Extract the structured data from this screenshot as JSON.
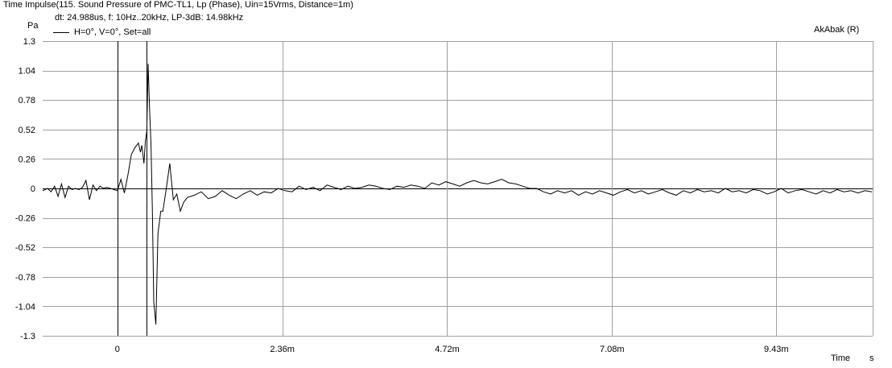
{
  "window": {
    "title": "Time Impulse(115. Sound Pressure of PMC-TL1, Lp (Phase), Uin=15Vrms, Distance=1m)",
    "subtitle": "dt: 24.988us, f: 10Hz..20kHz, LP-3dB: 14.98kHz",
    "watermark": "AkAbak (R)"
  },
  "chart_data": {
    "type": "line",
    "title": "Time Impulse(115. Sound Pressure of PMC-TL1, Lp (Phase), Uin=15Vrms, Distance=1m)",
    "subtitle": "dt: 24.988us, f: 10Hz..20kHz, LP-3dB: 14.98kHz",
    "xlabel": "Time",
    "xunit": "s",
    "ylabel": "Pa",
    "ylim": [
      -1.3,
      1.3
    ],
    "xlim": [
      -0.00107,
      0.01081
    ],
    "grid": true,
    "legend_position": "top-left",
    "y_ticks": [
      {
        "v": 1.3,
        "label": "1.3"
      },
      {
        "v": 1.04,
        "label": "1.04"
      },
      {
        "v": 0.78,
        "label": "0.78"
      },
      {
        "v": 0.52,
        "label": "0.52"
      },
      {
        "v": 0.26,
        "label": "0.26"
      },
      {
        "v": 0,
        "label": "0"
      },
      {
        "v": -0.26,
        "label": "-0.26"
      },
      {
        "v": -0.52,
        "label": "-0.52"
      },
      {
        "v": -0.78,
        "label": "-0.78"
      },
      {
        "v": -1.04,
        "label": "-1.04"
      },
      {
        "v": -1.3,
        "label": "-1.3"
      }
    ],
    "x_ticks": [
      {
        "v": 0,
        "label": "0"
      },
      {
        "v": 0.00236,
        "label": "2.36m"
      },
      {
        "v": 0.00472,
        "label": "4.72m"
      },
      {
        "v": 0.00708,
        "label": "7.08m"
      },
      {
        "v": 0.00943,
        "label": "9.43m"
      }
    ],
    "series": [
      {
        "name": "H=0°, V=0°, Set=all",
        "color": "#000000",
        "x": [
          -0.00107,
          -0.001,
          -0.00095,
          -0.0009,
          -0.00085,
          -0.0008,
          -0.00075,
          -0.0007,
          -0.00065,
          -0.0006,
          -0.00055,
          -0.0005,
          -0.00045,
          -0.0004,
          -0.00035,
          -0.0003,
          -0.00025,
          -0.0002,
          -0.00015,
          -0.0001,
          -5e-05,
          0,
          5e-05,
          0.0001,
          0.00015,
          0.0002,
          0.00025,
          0.0003,
          0.00033,
          0.00035,
          0.00038,
          0.0004,
          0.00042,
          0.00044,
          0.00046,
          0.00048,
          0.0005,
          0.00052,
          0.00055,
          0.00058,
          0.00062,
          0.00065,
          0.0007,
          0.00075,
          0.0008,
          0.00085,
          0.0009,
          0.00095,
          0.001,
          0.0011,
          0.0012,
          0.0013,
          0.0014,
          0.0015,
          0.0016,
          0.0017,
          0.0018,
          0.0019,
          0.002,
          0.0021,
          0.0022,
          0.0023,
          0.0024,
          0.0025,
          0.0026,
          0.0027,
          0.0028,
          0.0029,
          0.003,
          0.0031,
          0.0032,
          0.0033,
          0.0034,
          0.0035,
          0.0036,
          0.0037,
          0.0038,
          0.0039,
          0.004,
          0.0041,
          0.0042,
          0.0043,
          0.0044,
          0.0045,
          0.0046,
          0.0047,
          0.0048,
          0.0049,
          0.005,
          0.0051,
          0.0052,
          0.0053,
          0.0054,
          0.0055,
          0.0056,
          0.0057,
          0.0058,
          0.0059,
          0.006,
          0.0061,
          0.0062,
          0.0063,
          0.0064,
          0.0065,
          0.0066,
          0.0067,
          0.0068,
          0.0069,
          0.007,
          0.0071,
          0.0072,
          0.0073,
          0.0074,
          0.0075,
          0.0076,
          0.0077,
          0.0078,
          0.0079,
          0.008,
          0.0081,
          0.0082,
          0.0083,
          0.0084,
          0.0085,
          0.0086,
          0.0087,
          0.0088,
          0.0089,
          0.009,
          0.0091,
          0.0092,
          0.0093,
          0.0094,
          0.0095,
          0.0096,
          0.0097,
          0.0098,
          0.0099,
          0.01,
          0.0101,
          0.0102,
          0.0103,
          0.0104,
          0.0105,
          0.0106,
          0.0107,
          0.0108
        ],
        "y": [
          -0.02,
          0.0,
          -0.03,
          0.02,
          -0.07,
          0.04,
          -0.08,
          0.02,
          -0.01,
          0.0,
          -0.01,
          0.01,
          0.07,
          -0.1,
          0.03,
          -0.02,
          0.02,
          0.0,
          0.01,
          0.0,
          -0.01,
          -0.02,
          0.08,
          -0.04,
          0.12,
          0.3,
          0.36,
          0.4,
          0.32,
          0.38,
          0.22,
          0.42,
          0.5,
          1.1,
          0.7,
          0.4,
          -0.2,
          -1.0,
          -1.2,
          -0.4,
          -0.2,
          -0.2,
          0.0,
          0.22,
          -0.1,
          -0.05,
          -0.2,
          -0.12,
          -0.08,
          -0.06,
          -0.03,
          -0.09,
          -0.07,
          -0.02,
          -0.06,
          -0.09,
          -0.05,
          -0.02,
          -0.06,
          -0.03,
          -0.04,
          0.0,
          -0.02,
          -0.03,
          0.02,
          -0.01,
          0.01,
          -0.02,
          0.03,
          0.01,
          -0.01,
          0.02,
          0.0,
          0.01,
          0.03,
          0.02,
          0.0,
          -0.01,
          0.02,
          0.01,
          0.03,
          0.02,
          0.0,
          0.05,
          0.03,
          0.06,
          0.04,
          0.02,
          0.05,
          0.07,
          0.05,
          0.04,
          0.06,
          0.08,
          0.05,
          0.04,
          0.02,
          0.0,
          0.0,
          -0.03,
          -0.05,
          -0.02,
          -0.04,
          -0.02,
          -0.06,
          -0.03,
          -0.05,
          -0.02,
          -0.04,
          -0.06,
          -0.03,
          -0.01,
          -0.04,
          -0.02,
          -0.05,
          -0.03,
          -0.01,
          -0.04,
          -0.06,
          -0.02,
          -0.04,
          -0.01,
          -0.03,
          -0.02,
          -0.04,
          0.0,
          -0.03,
          -0.02,
          -0.04,
          -0.01,
          -0.02,
          -0.05,
          -0.03,
          0.0,
          -0.04,
          -0.02,
          -0.01,
          -0.03,
          -0.05,
          -0.02,
          -0.04,
          -0.01,
          -0.03,
          -0.02,
          -0.04,
          -0.02,
          -0.03
        ]
      }
    ],
    "markers": [
      0,
      0.00042
    ]
  }
}
